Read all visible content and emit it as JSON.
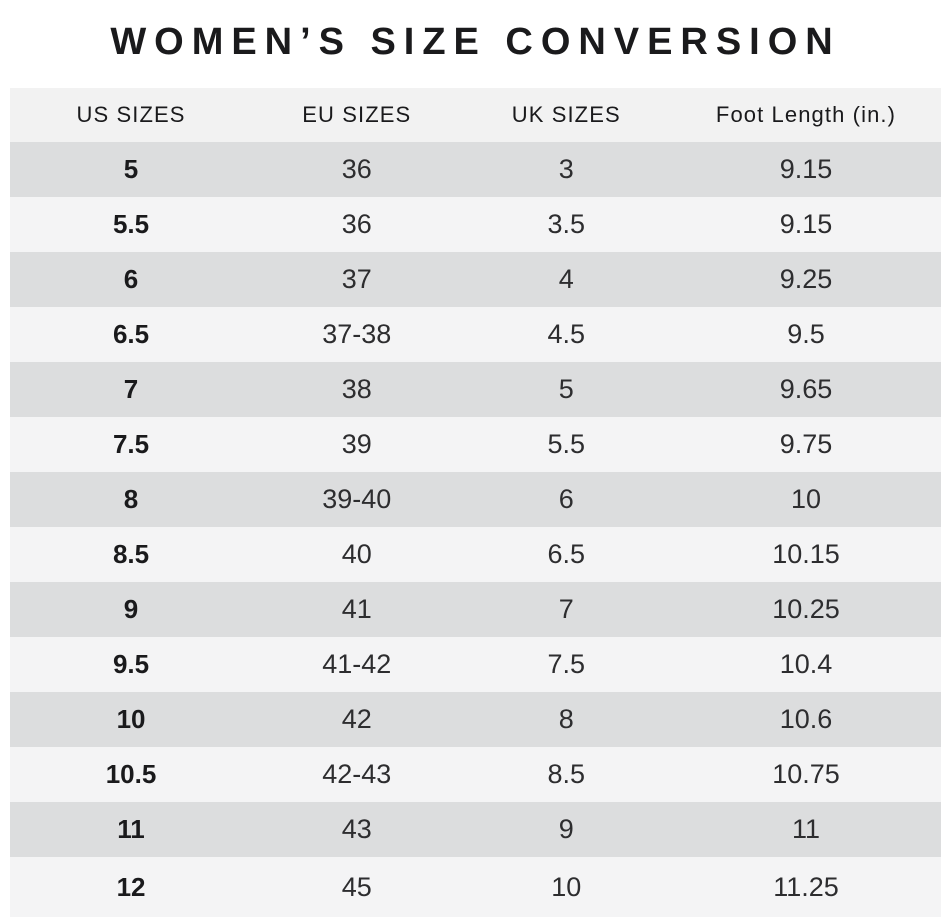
{
  "title": "WOMEN’S SIZE CONVERSION",
  "colors": {
    "page_bg": "#ffffff",
    "header_bg": "#f2f2f2",
    "row_dark": "#dcddde",
    "row_light": "#f4f4f5",
    "text_primary": "#1a1a1c",
    "text_data": "#2d2d2f"
  },
  "chart_data": {
    "type": "table",
    "title": "WOMEN’S SIZE CONVERSION",
    "columns": [
      "US SIZES",
      "EU SIZES",
      "UK SIZES",
      "Foot Length (in.)"
    ],
    "rows": [
      [
        "5",
        "36",
        "3",
        "9.15"
      ],
      [
        "5.5",
        "36",
        "3.5",
        "9.15"
      ],
      [
        "6",
        "37",
        "4",
        "9.25"
      ],
      [
        "6.5",
        "37-38",
        "4.5",
        "9.5"
      ],
      [
        "7",
        "38",
        "5",
        "9.65"
      ],
      [
        "7.5",
        "39",
        "5.5",
        "9.75"
      ],
      [
        "8",
        "39-40",
        "6",
        "10"
      ],
      [
        "8.5",
        "40",
        "6.5",
        "10.15"
      ],
      [
        "9",
        "41",
        "7",
        "10.25"
      ],
      [
        "9.5",
        "41-42",
        "7.5",
        "10.4"
      ],
      [
        "10",
        "42",
        "8",
        "10.6"
      ],
      [
        "10.5",
        "42-43",
        "8.5",
        "10.75"
      ],
      [
        "11",
        "43",
        "9",
        "11"
      ],
      [
        "12",
        "45",
        "10",
        "11.25"
      ]
    ],
    "layout": {
      "striping": "alternating rows, first data row dark",
      "us_sizes_column_bold": true
    }
  }
}
